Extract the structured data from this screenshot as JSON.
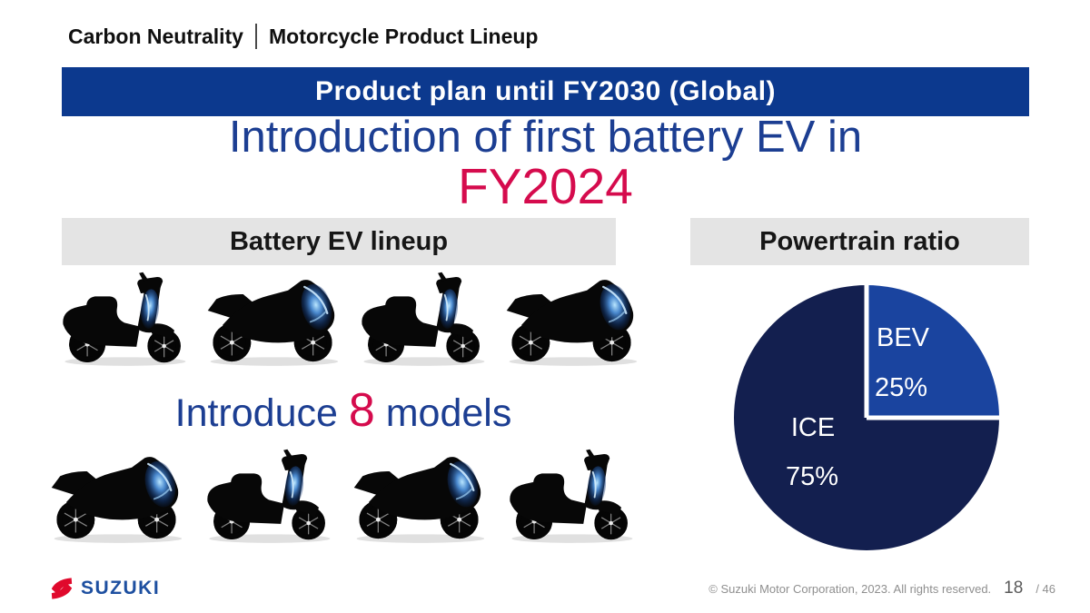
{
  "slide": {
    "header": {
      "title_left": "Carbon Neutrality",
      "title_right": "Motorcycle Product Lineup"
    },
    "banner": {
      "text": "Product plan until FY2030 (Global)"
    },
    "headline": {
      "line1": "Introduction of first battery EV in",
      "line2": "FY2024"
    },
    "left_panel": {
      "heading": "Battery EV lineup",
      "intro": {
        "prefix": "Introduce ",
        "count": "8",
        "suffix": " models"
      },
      "bike_rows": [
        [
          "scooter",
          "sport",
          "scooter",
          "sport"
        ],
        [
          "sport",
          "scooter",
          "sport",
          "scooter"
        ]
      ]
    },
    "right_panel": {
      "heading": "Powertrain ratio"
    },
    "footer": {
      "brand": "SUZUKI",
      "copyright": "© Suzuki Motor Corporation, 2023. All rights reserved.",
      "page_number": "18",
      "page_total": "/ 46"
    }
  },
  "chart_data": {
    "type": "pie",
    "title": "Powertrain ratio",
    "slices": [
      {
        "label": "BEV",
        "value": 25,
        "value_label": "25%",
        "color": "#1a449f"
      },
      {
        "label": "ICE",
        "value": 75,
        "value_label": "75%",
        "color": "#131f4f"
      }
    ],
    "start_angle_deg": 0,
    "direction": "clockwise",
    "labels_inside": true,
    "label_color": "#ffffff",
    "legend": "none"
  },
  "theme": {
    "banner_bg": "#0c398e",
    "headline_blue": "#1c3e92",
    "accent_red": "#d50b4d",
    "section_heading_bg": "#e4e4e4",
    "suzuki_blue": "#1d4fa0",
    "suzuki_red": "#e0092c",
    "footer_text": "#8f8f8f"
  }
}
